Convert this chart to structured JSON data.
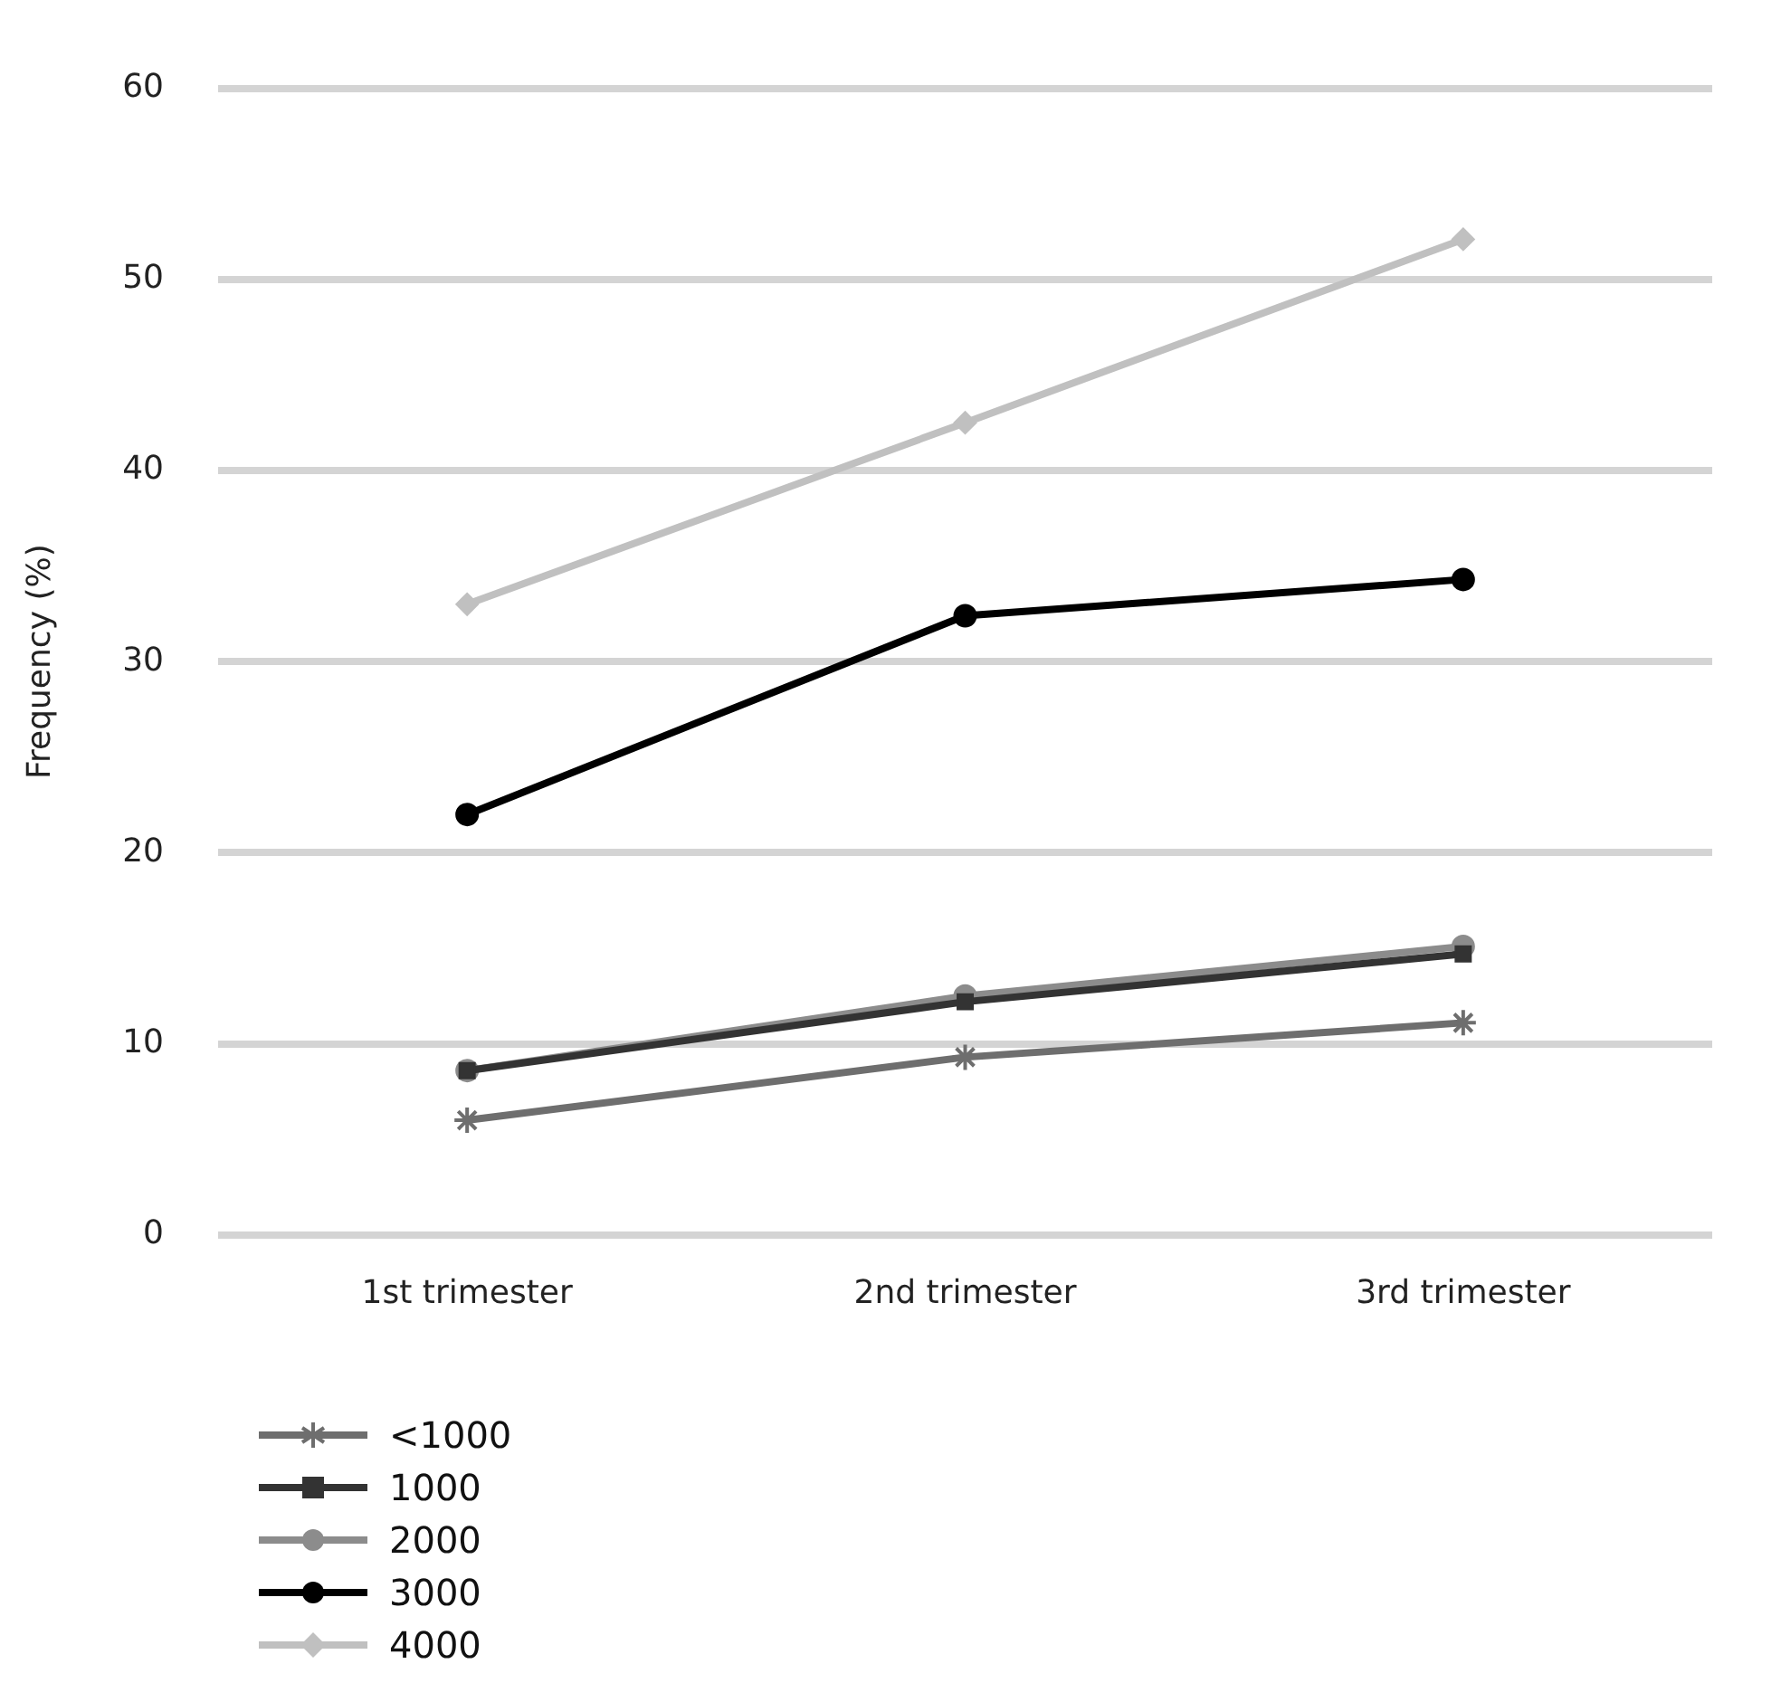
{
  "chart_data": {
    "type": "line",
    "ylabel": "Frequency (%)",
    "categories": [
      "1st trimester",
      "2nd trimester",
      "3rd trimester"
    ],
    "series": [
      {
        "name": "<1000",
        "color": "#6e6e6e",
        "marker": "cross",
        "values": [
          6.0,
          9.3,
          11.1
        ]
      },
      {
        "name": "1000",
        "color": "#333333",
        "marker": "square",
        "values": [
          8.6,
          12.2,
          14.7
        ]
      },
      {
        "name": "2000",
        "color": "#8c8c8c",
        "marker": "circle",
        "values": [
          8.6,
          12.5,
          15.1
        ]
      },
      {
        "name": "3000",
        "color": "#000000",
        "marker": "circle",
        "values": [
          22.0,
          32.4,
          34.3
        ]
      },
      {
        "name": "4000",
        "color": "#c0c0c0",
        "marker": "diamond",
        "values": [
          33.0,
          42.5,
          52.1
        ]
      }
    ],
    "ylim": [
      0,
      60
    ],
    "yticks": [
      0,
      10,
      20,
      30,
      40,
      50,
      60
    ],
    "grid": "y",
    "legend": "bottom left"
  }
}
